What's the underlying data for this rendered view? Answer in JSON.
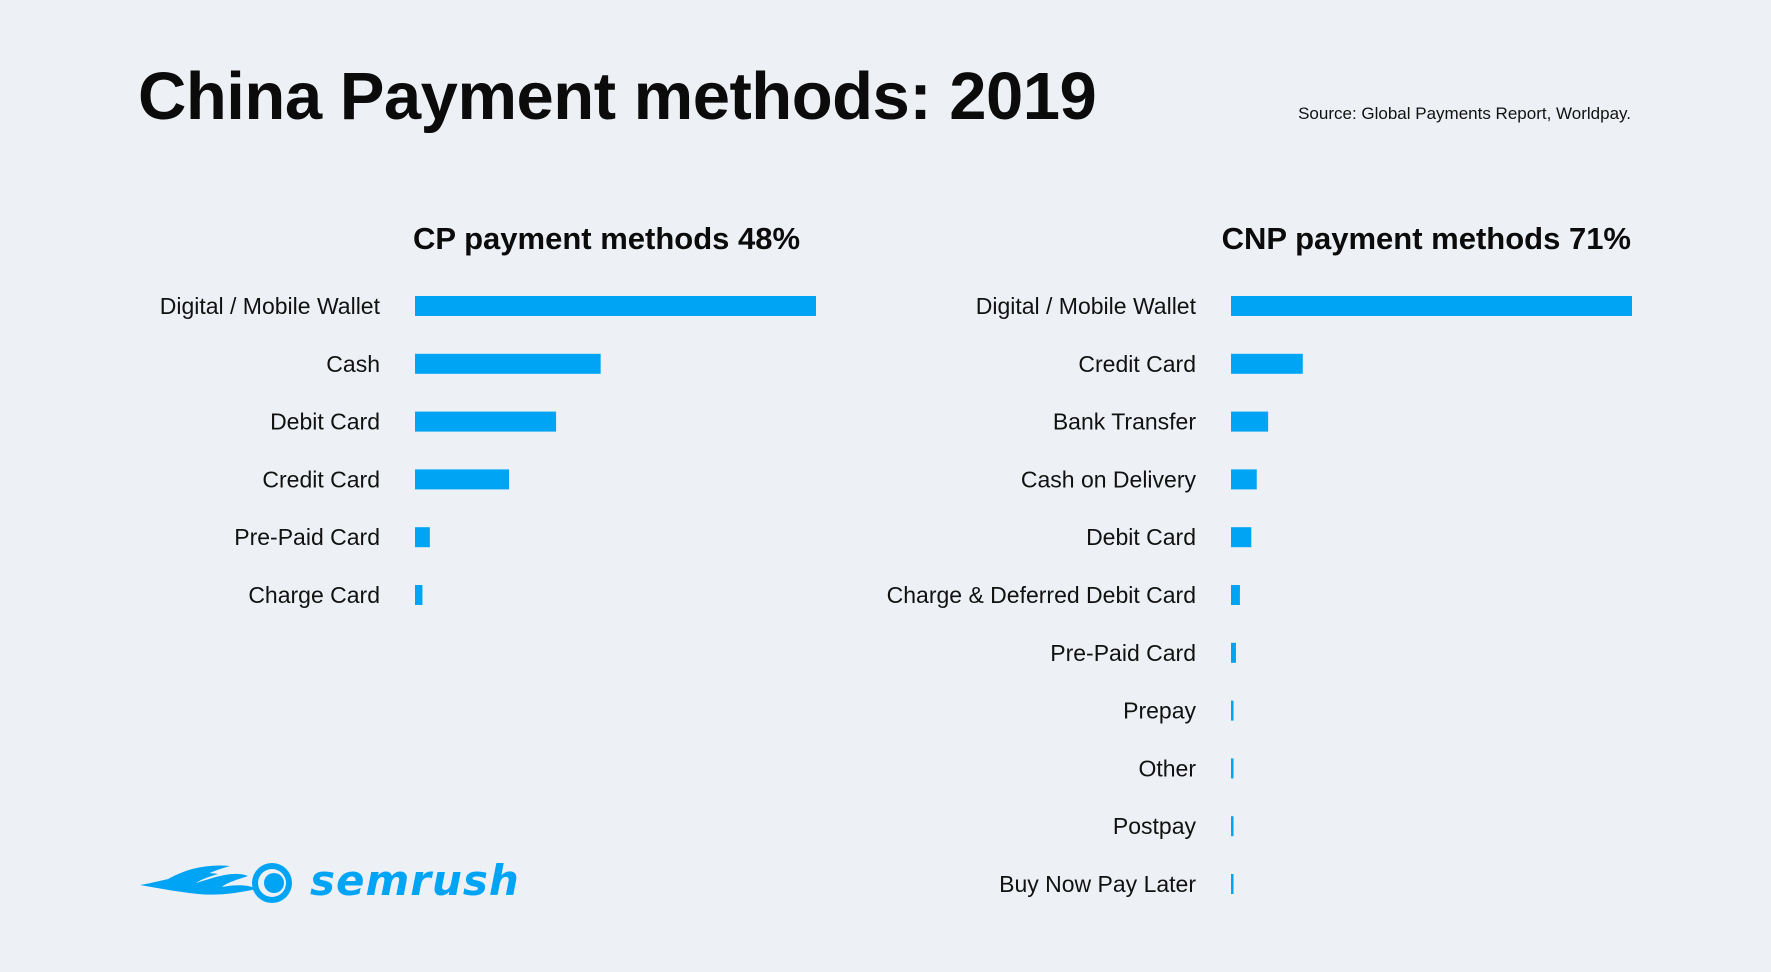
{
  "title": "China Payment methods: 2019",
  "source": "Source: Global Payments Report, Worldpay.",
  "logo_text": "SEMRUSH",
  "colors": {
    "bar": "#00a4f5",
    "background": "#edf1f5",
    "brand": "#00a4f5"
  },
  "chart_data": [
    {
      "type": "bar",
      "orientation": "horizontal",
      "title": "CP payment methods 48%",
      "categories": [
        "Digital / Mobile Wallet",
        "Cash",
        "Debit Card",
        "Credit Card",
        "Pre-Paid Card",
        "Charge Card"
      ],
      "values": [
        81,
        37.5,
        28.5,
        19,
        3,
        1.5
      ],
      "xlim": [
        0,
        81
      ]
    },
    {
      "type": "bar",
      "orientation": "horizontal",
      "title": "CNP payment methods 71%",
      "categories": [
        "Digital / Mobile Wallet",
        "Credit Card",
        "Bank Transfer",
        "Cash on Delivery",
        "Debit Card",
        "Charge & Deferred Debit Card",
        "Pre-Paid Card",
        "Prepay",
        "Other",
        "Postpay",
        "Buy Now Pay Later"
      ],
      "values": [
        81,
        14.5,
        7.5,
        5.2,
        4.1,
        1.8,
        1,
        0.5,
        0.5,
        0.5,
        0.5
      ],
      "xlim": [
        0,
        81
      ]
    }
  ]
}
